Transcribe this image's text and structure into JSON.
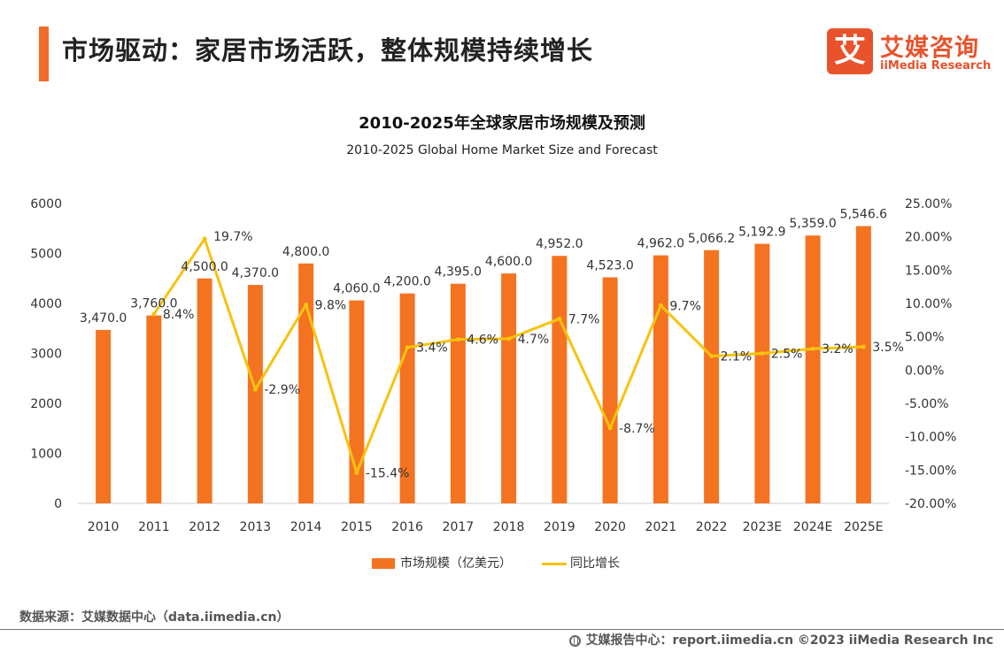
{
  "header": {
    "title": "市场驱动：家居市场活跃，整体规模持续增长",
    "logo_mark": "艾",
    "logo_cn": "艾媒咨询",
    "logo_en": "iiMedia Research"
  },
  "chart_data": {
    "type": "bar",
    "title": "2010-2025年全球家居市场规模及预测",
    "subtitle": "2010-2025 Global Home Market Size and Forecast",
    "categories": [
      "2010",
      "2011",
      "2012",
      "2013",
      "2014",
      "2015",
      "2016",
      "2017",
      "2018",
      "2019",
      "2020",
      "2021",
      "2022",
      "2023E",
      "2024E",
      "2025E"
    ],
    "series": [
      {
        "name": "市场规模（亿美元）",
        "type": "bar",
        "axis": "left",
        "color": "#f47320",
        "values": [
          3470.0,
          3760.0,
          4500.0,
          4370.0,
          4800.0,
          4060.0,
          4200.0,
          4395.0,
          4600.0,
          4952.0,
          4523.0,
          4962.0,
          5066.2,
          5192.9,
          5359.0,
          5546.6
        ],
        "labels": [
          "3,470.0",
          "3,760.0",
          "4,500.0",
          "4,370.0",
          "4,800.0",
          "4,060.0",
          "4,200.0",
          "4,395.0",
          "4,600.0",
          "4,952.0",
          "4,523.0",
          "4,962.0",
          "5,066.2",
          "5,192.9",
          "5,359.0",
          "5,546.6"
        ]
      },
      {
        "name": "同比增长",
        "type": "line",
        "axis": "right",
        "color": "#f5c30f",
        "values": [
          null,
          8.4,
          19.7,
          -2.9,
          9.8,
          -15.4,
          3.4,
          4.6,
          4.7,
          7.7,
          -8.7,
          9.7,
          2.1,
          2.5,
          3.2,
          3.5
        ],
        "labels": [
          "",
          "8.4%",
          "19.7%",
          "-2.9%",
          "9.8%",
          "-15.4%",
          "3.4%",
          "4.6%",
          "4.7%",
          "7.7%",
          "-8.7%",
          "9.7%",
          "2.1%",
          "2.5%",
          "3.2%",
          "3.5%"
        ]
      }
    ],
    "y_left": {
      "min": 0,
      "max": 6000,
      "ticks": [
        "0",
        "1000",
        "2000",
        "3000",
        "4000",
        "5000",
        "6000"
      ]
    },
    "y_right": {
      "min": -20,
      "max": 25,
      "ticks": [
        "-20.00%",
        "-15.00%",
        "-10.00%",
        "-5.00%",
        "0.00%",
        "5.00%",
        "10.00%",
        "15.00%",
        "20.00%",
        "25.00%"
      ]
    },
    "grid": false,
    "legend_position": "bottom"
  },
  "legend": {
    "bar_label": "市场规模（亿美元）",
    "line_label": "同比增长"
  },
  "source": "数据来源：艾媒数据中心（data.iimedia.cn）",
  "footer": "艾媒报告中心：report.iimedia.cn  ©2023  iiMedia Research  Inc"
}
